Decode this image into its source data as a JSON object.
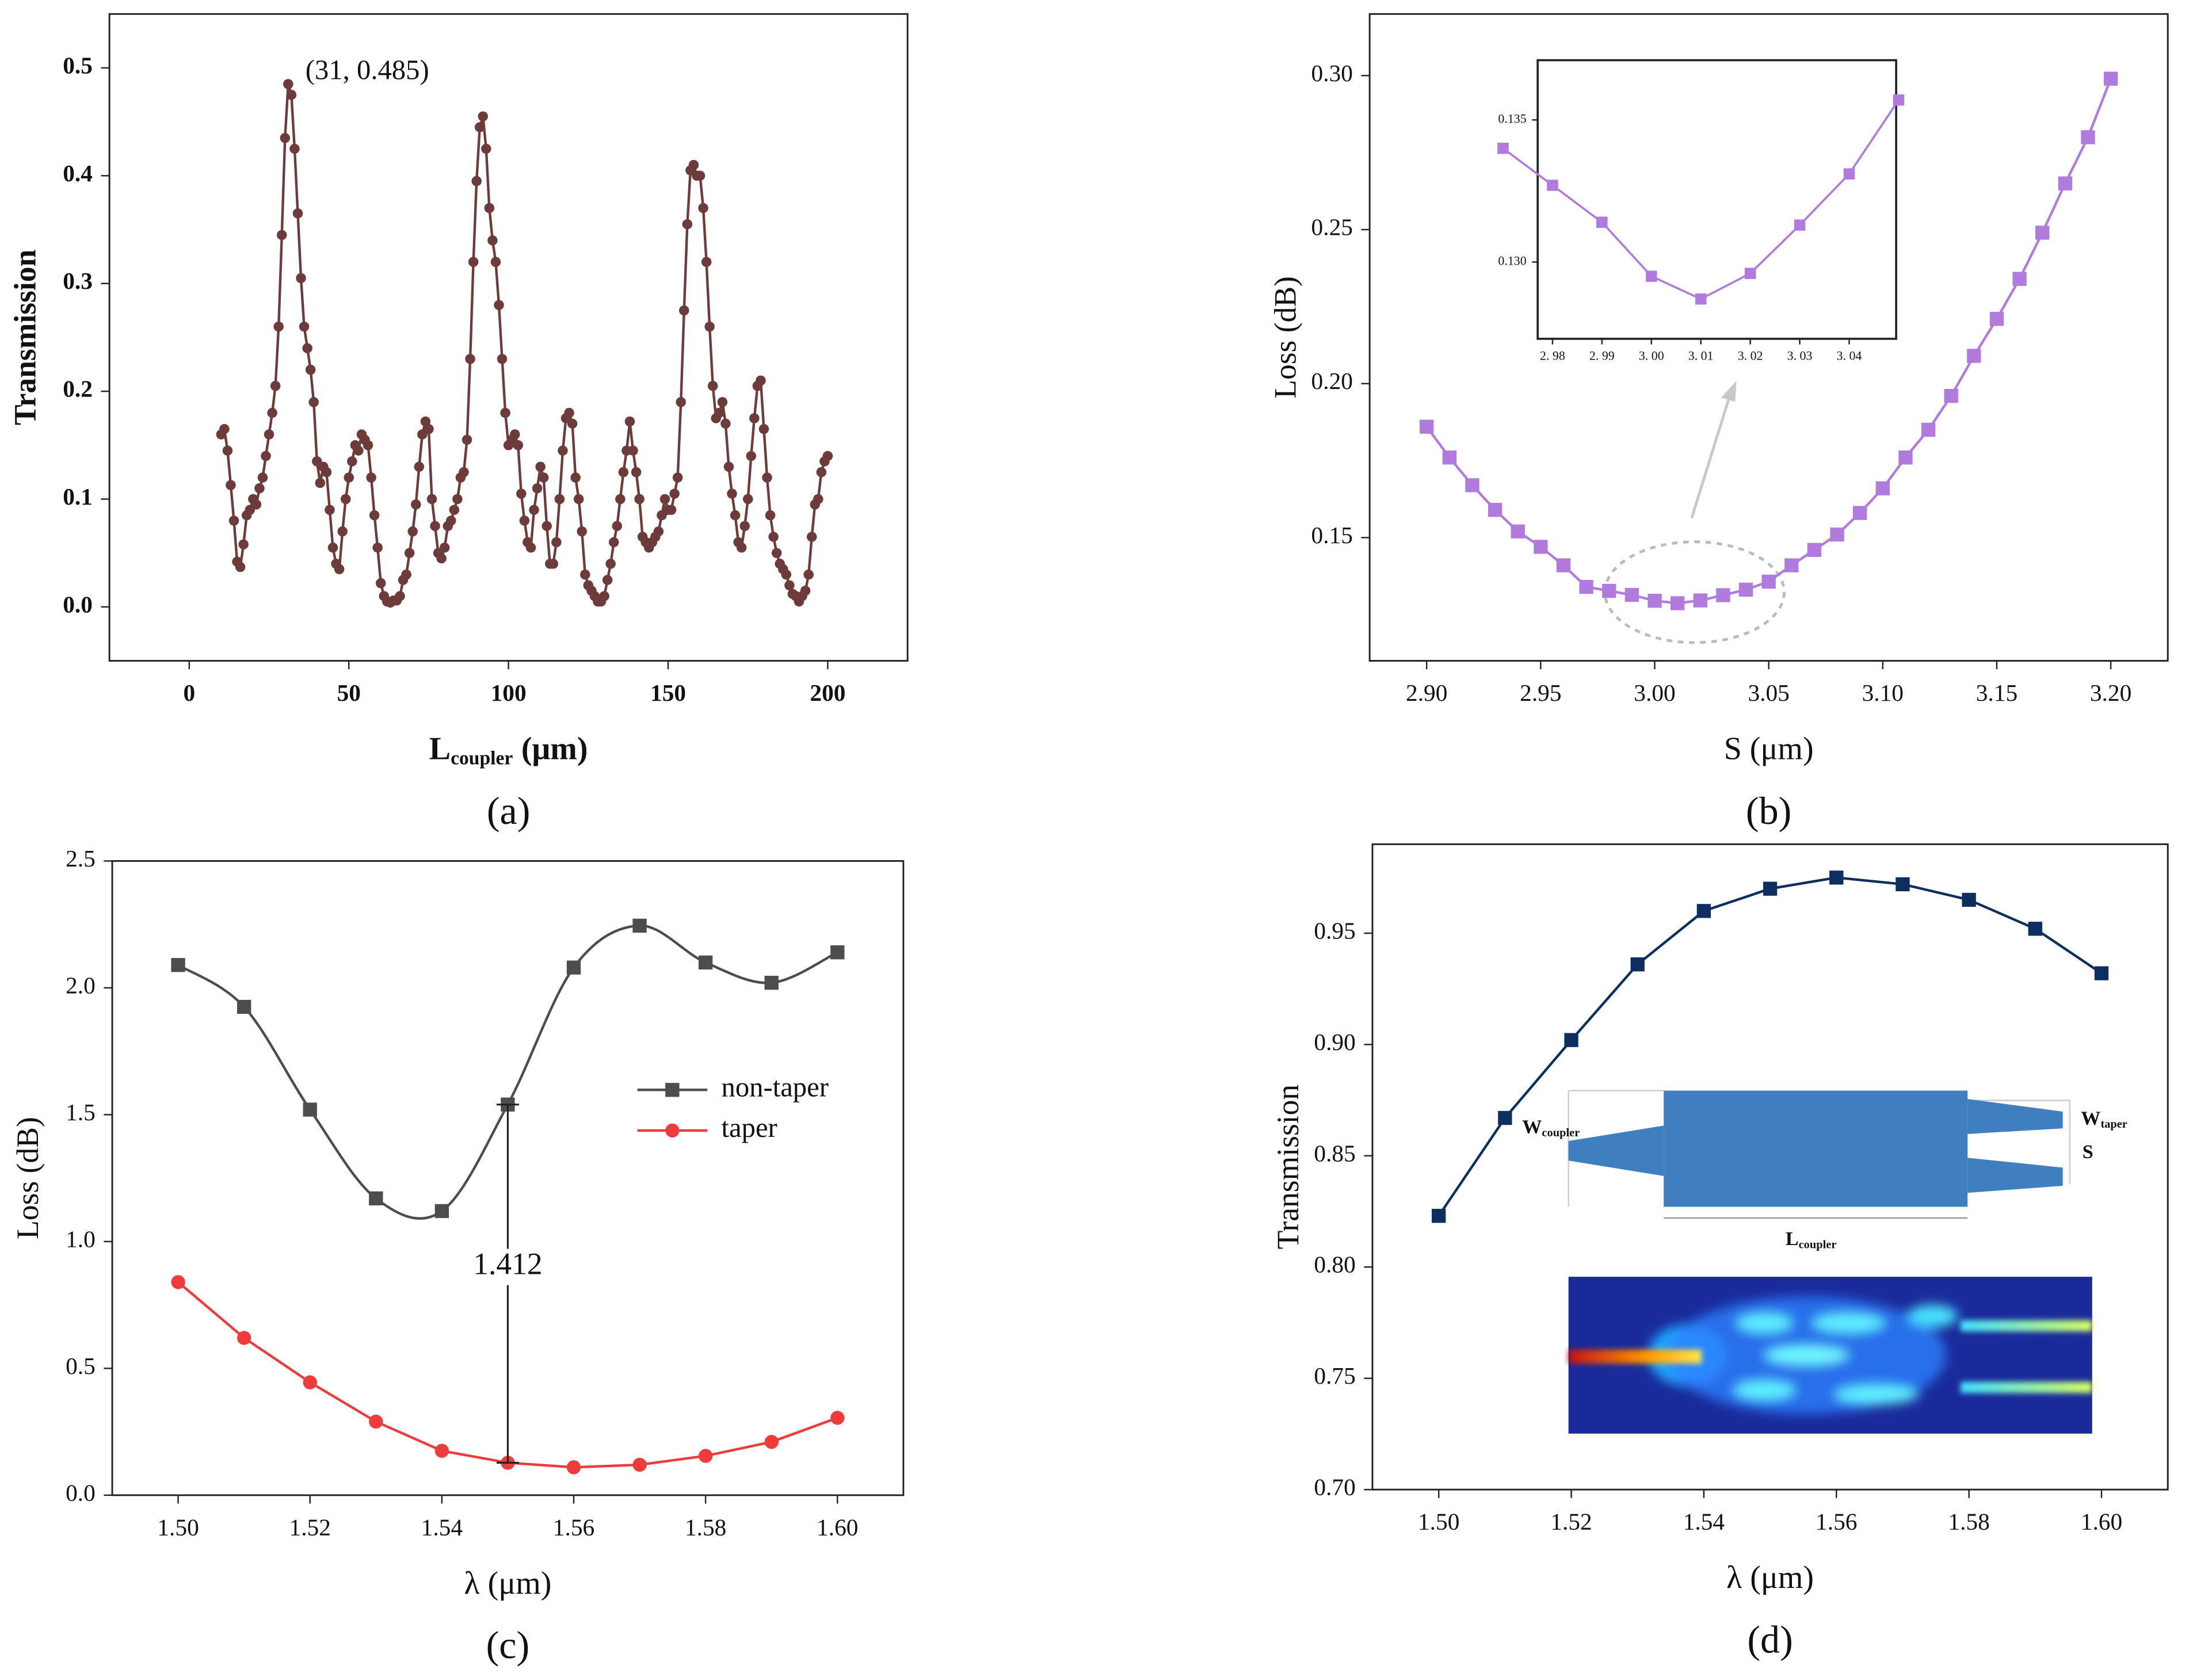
{
  "chart_data": [
    {
      "type": "line",
      "panel": "(a)",
      "ylabel": "Transmission",
      "xlabel": {
        "main": "L",
        "sub": "coupler",
        "unit": "(μm)"
      },
      "annotation": "(31, 0.485)",
      "xlim": [
        -25,
        225
      ],
      "xticks": [
        0,
        50,
        100,
        150,
        200
      ],
      "ylim": [
        -0.05,
        0.55
      ],
      "yticks": [
        {
          "value": 0,
          "label": "0.0"
        },
        0.1,
        0.2,
        0.3,
        0.4,
        0.5
      ],
      "x": [
        10,
        11,
        12,
        13,
        14,
        15,
        16,
        17,
        18,
        19,
        20,
        21,
        22,
        23,
        24,
        25,
        26,
        27,
        28,
        29,
        30,
        31,
        32,
        33,
        34,
        35,
        36,
        37,
        38,
        39,
        40,
        41,
        42,
        43,
        44,
        45,
        46,
        47,
        48,
        49,
        50,
        51,
        52,
        53,
        54,
        55,
        56,
        57,
        58,
        59,
        60,
        61,
        62,
        63,
        64,
        65,
        66,
        67,
        68,
        69,
        70,
        71,
        72,
        73,
        74,
        75,
        76,
        77,
        78,
        79,
        80,
        81,
        82,
        83,
        84,
        85,
        86,
        87,
        88,
        89,
        90,
        91,
        92,
        93,
        94,
        95,
        96,
        97,
        98,
        99,
        100,
        101,
        102,
        103,
        104,
        105,
        106,
        107,
        108,
        109,
        110,
        111,
        112,
        113,
        114,
        115,
        116,
        117,
        118,
        119,
        120,
        121,
        122,
        123,
        124,
        125,
        126,
        127,
        128,
        129,
        130,
        131,
        132,
        133,
        134,
        135,
        136,
        137,
        138,
        139,
        140,
        141,
        142,
        143,
        144,
        145,
        146,
        147,
        148,
        149,
        150,
        151,
        152,
        153,
        154,
        155,
        156,
        157,
        158,
        159,
        160,
        161,
        162,
        163,
        164,
        165,
        166,
        167,
        168,
        169,
        170,
        171,
        172,
        173,
        174,
        175,
        176,
        177,
        178,
        179,
        180,
        181,
        182,
        183,
        184,
        185,
        186,
        187,
        188,
        189,
        190,
        191,
        192,
        193,
        194,
        195,
        196,
        197,
        198,
        199,
        200
      ],
      "series": [
        {
          "color": "#6e3b3b",
          "marker": "circle",
          "values": [
            0.16,
            0.165,
            0.145,
            0.113,
            0.08,
            0.042,
            0.037,
            0.058,
            0.085,
            0.09,
            0.1,
            0.095,
            0.11,
            0.12,
            0.14,
            0.16,
            0.18,
            0.205,
            0.26,
            0.345,
            0.435,
            0.485,
            0.475,
            0.425,
            0.365,
            0.305,
            0.26,
            0.24,
            0.22,
            0.19,
            0.135,
            0.115,
            0.13,
            0.125,
            0.09,
            0.055,
            0.04,
            0.035,
            0.07,
            0.1,
            0.12,
            0.135,
            0.15,
            0.145,
            0.16,
            0.155,
            0.15,
            0.12,
            0.085,
            0.055,
            0.022,
            0.01,
            0.005,
            0.004,
            0.006,
            0.006,
            0.01,
            0.025,
            0.03,
            0.05,
            0.07,
            0.095,
            0.13,
            0.16,
            0.172,
            0.165,
            0.1,
            0.075,
            0.05,
            0.045,
            0.055,
            0.075,
            0.08,
            0.09,
            0.1,
            0.12,
            0.125,
            0.155,
            0.23,
            0.32,
            0.395,
            0.445,
            0.455,
            0.425,
            0.37,
            0.34,
            0.32,
            0.28,
            0.23,
            0.18,
            0.15,
            0.155,
            0.16,
            0.15,
            0.105,
            0.08,
            0.06,
            0.055,
            0.09,
            0.11,
            0.13,
            0.12,
            0.075,
            0.04,
            0.04,
            0.06,
            0.1,
            0.145,
            0.175,
            0.18,
            0.17,
            0.12,
            0.1,
            0.07,
            0.03,
            0.02,
            0.015,
            0.01,
            0.005,
            0.005,
            0.01,
            0.025,
            0.04,
            0.06,
            0.075,
            0.1,
            0.125,
            0.145,
            0.172,
            0.145,
            0.125,
            0.1,
            0.065,
            0.06,
            0.055,
            0.06,
            0.065,
            0.07,
            0.085,
            0.1,
            0.09,
            0.09,
            0.105,
            0.12,
            0.19,
            0.275,
            0.355,
            0.405,
            0.41,
            0.4,
            0.4,
            0.37,
            0.32,
            0.26,
            0.205,
            0.175,
            0.18,
            0.19,
            0.17,
            0.13,
            0.105,
            0.085,
            0.06,
            0.055,
            0.075,
            0.1,
            0.14,
            0.175,
            0.205,
            0.21,
            0.165,
            0.12,
            0.085,
            0.065,
            0.05,
            0.04,
            0.035,
            0.03,
            0.02,
            0.012,
            0.01,
            0.005,
            0.01,
            0.015,
            0.03,
            0.065,
            0.095,
            0.1,
            0.125,
            0.135,
            0.14
          ]
        }
      ]
    },
    {
      "type": "line",
      "panel": "(b)",
      "ylabel": "Loss (dB)",
      "xlabel": {
        "main": "S (μm)"
      },
      "xlim": [
        2.875,
        3.225
      ],
      "xticks": [
        {
          "value": 2.9,
          "label": "2.90"
        },
        2.95,
        {
          "value": 3,
          "label": "3.00"
        },
        3.05,
        {
          "value": 3.1,
          "label": "3.10"
        },
        3.15,
        {
          "value": 3.2,
          "label": "3.20"
        }
      ],
      "ylim": [
        0.11,
        0.32
      ],
      "yticks": [
        0.15,
        {
          "value": 0.2,
          "label": "0.20"
        },
        0.25,
        {
          "value": 0.3,
          "label": "0.30"
        }
      ],
      "x": [
        2.9,
        2.91,
        2.92,
        2.93,
        2.94,
        2.95,
        2.96,
        2.97,
        2.98,
        2.99,
        3,
        3.01,
        3.02,
        3.03,
        3.04,
        3.05,
        3.06,
        3.07,
        3.08,
        3.09,
        3.1,
        3.11,
        3.12,
        3.13,
        3.14,
        3.15,
        3.16,
        3.17,
        3.18,
        3.19,
        3.2
      ],
      "series": [
        {
          "color": "#b07bdc",
          "marker": "square",
          "values": [
            0.186,
            0.176,
            0.167,
            0.159,
            0.152,
            0.147,
            0.141,
            0.134,
            0.1327,
            0.1314,
            0.1295,
            0.1287,
            0.1296,
            0.1313,
            0.1331,
            0.1357,
            0.141,
            0.146,
            0.151,
            0.158,
            0.166,
            0.176,
            0.185,
            0.196,
            0.209,
            0.221,
            0.234,
            0.249,
            0.265,
            0.28,
            0.299
          ]
        }
      ]
    },
    {
      "type": "line",
      "inset": true,
      "xlim": [
        2.977,
        3.0495
      ],
      "xticks": [
        {
          "value": 2.98,
          "label": "2. 98"
        },
        {
          "value": 2.99,
          "label": "2. 99"
        },
        {
          "value": 3,
          "label": "3. 00"
        },
        {
          "value": 3.01,
          "label": "3. 01"
        },
        {
          "value": 3.02,
          "label": "3. 02"
        },
        {
          "value": 3.03,
          "label": "3. 03"
        },
        {
          "value": 3.04,
          "label": "3. 04"
        }
      ],
      "ylim": [
        0.1273,
        0.1371
      ],
      "yticks": [
        {
          "value": 0.13,
          "label": "0.130"
        },
        0.135
      ],
      "x": [
        2.97,
        2.98,
        2.99,
        3,
        3.01,
        3.02,
        3.03,
        3.04,
        3.05
      ],
      "series": [
        {
          "color": "#b07bdc",
          "marker": "square",
          "values": [
            0.134,
            0.1327,
            0.1314,
            0.1295,
            0.1287,
            0.1296,
            0.1313,
            0.1331,
            0.1357
          ]
        }
      ]
    },
    {
      "type": "line",
      "panel": "(c)",
      "ylabel": "Loss (dB)",
      "xlabel": {
        "main": "λ (μm)"
      },
      "annotation": "1.412",
      "legend": "center right",
      "xlim": [
        1.49,
        1.61
      ],
      "xticks": [
        {
          "value": 1.5,
          "label": "1.50"
        },
        1.52,
        1.54,
        1.56,
        1.58,
        {
          "value": 1.6,
          "label": "1.60"
        }
      ],
      "ylim": [
        0,
        2.5
      ],
      "yticks": [
        {
          "value": 0,
          "label": "0.0"
        },
        0.5,
        {
          "value": 1,
          "label": "1.0"
        },
        1.5,
        {
          "value": 2,
          "label": "2.0"
        },
        2.5
      ],
      "x": [
        1.5,
        1.51,
        1.52,
        1.53,
        1.54,
        1.55,
        1.56,
        1.57,
        1.58,
        1.59,
        1.6
      ],
      "series": [
        {
          "name": "non-taper",
          "color": "#4d4d4d",
          "marker": "square",
          "smooth": true,
          "values": [
            2.09,
            1.925,
            1.52,
            1.17,
            1.12,
            1.54,
            2.08,
            2.245,
            2.1,
            2.02,
            2.14
          ]
        },
        {
          "name": "taper",
          "color": "#ee3b3b",
          "marker": "circle",
          "values": [
            0.84,
            0.62,
            0.445,
            0.29,
            0.175,
            0.128,
            0.11,
            0.12,
            0.155,
            0.21,
            0.305
          ]
        }
      ]
    },
    {
      "type": "line",
      "panel": "(d)",
      "ylabel": "Transmission",
      "xlabel": {
        "main": "λ (μm)"
      },
      "inset_labels": [
        {
          "main": "W",
          "sub": "coupler"
        },
        {
          "main": "W",
          "sub": "taper"
        },
        {
          "main": "S"
        },
        {
          "main": "L",
          "sub": "coupler"
        }
      ],
      "xlim": [
        1.49,
        1.61
      ],
      "xticks": [
        {
          "value": 1.5,
          "label": "1.50"
        },
        1.52,
        1.54,
        1.56,
        1.58,
        {
          "value": 1.6,
          "label": "1.60"
        }
      ],
      "ylim": [
        0.7,
        0.99
      ],
      "yticks": [
        {
          "value": 0.7,
          "label": "0.70"
        },
        0.75,
        {
          "value": 0.8,
          "label": "0.80"
        },
        0.85,
        {
          "value": 0.9,
          "label": "0.90"
        },
        0.95
      ],
      "x": [
        1.5,
        1.51,
        1.52,
        1.53,
        1.54,
        1.55,
        1.56,
        1.57,
        1.58,
        1.59,
        1.6
      ],
      "series": [
        {
          "color": "#0d2f5f",
          "marker": "square",
          "values": [
            0.823,
            0.867,
            0.902,
            0.936,
            0.96,
            0.97,
            0.975,
            0.972,
            0.965,
            0.952,
            0.932
          ]
        }
      ]
    }
  ]
}
